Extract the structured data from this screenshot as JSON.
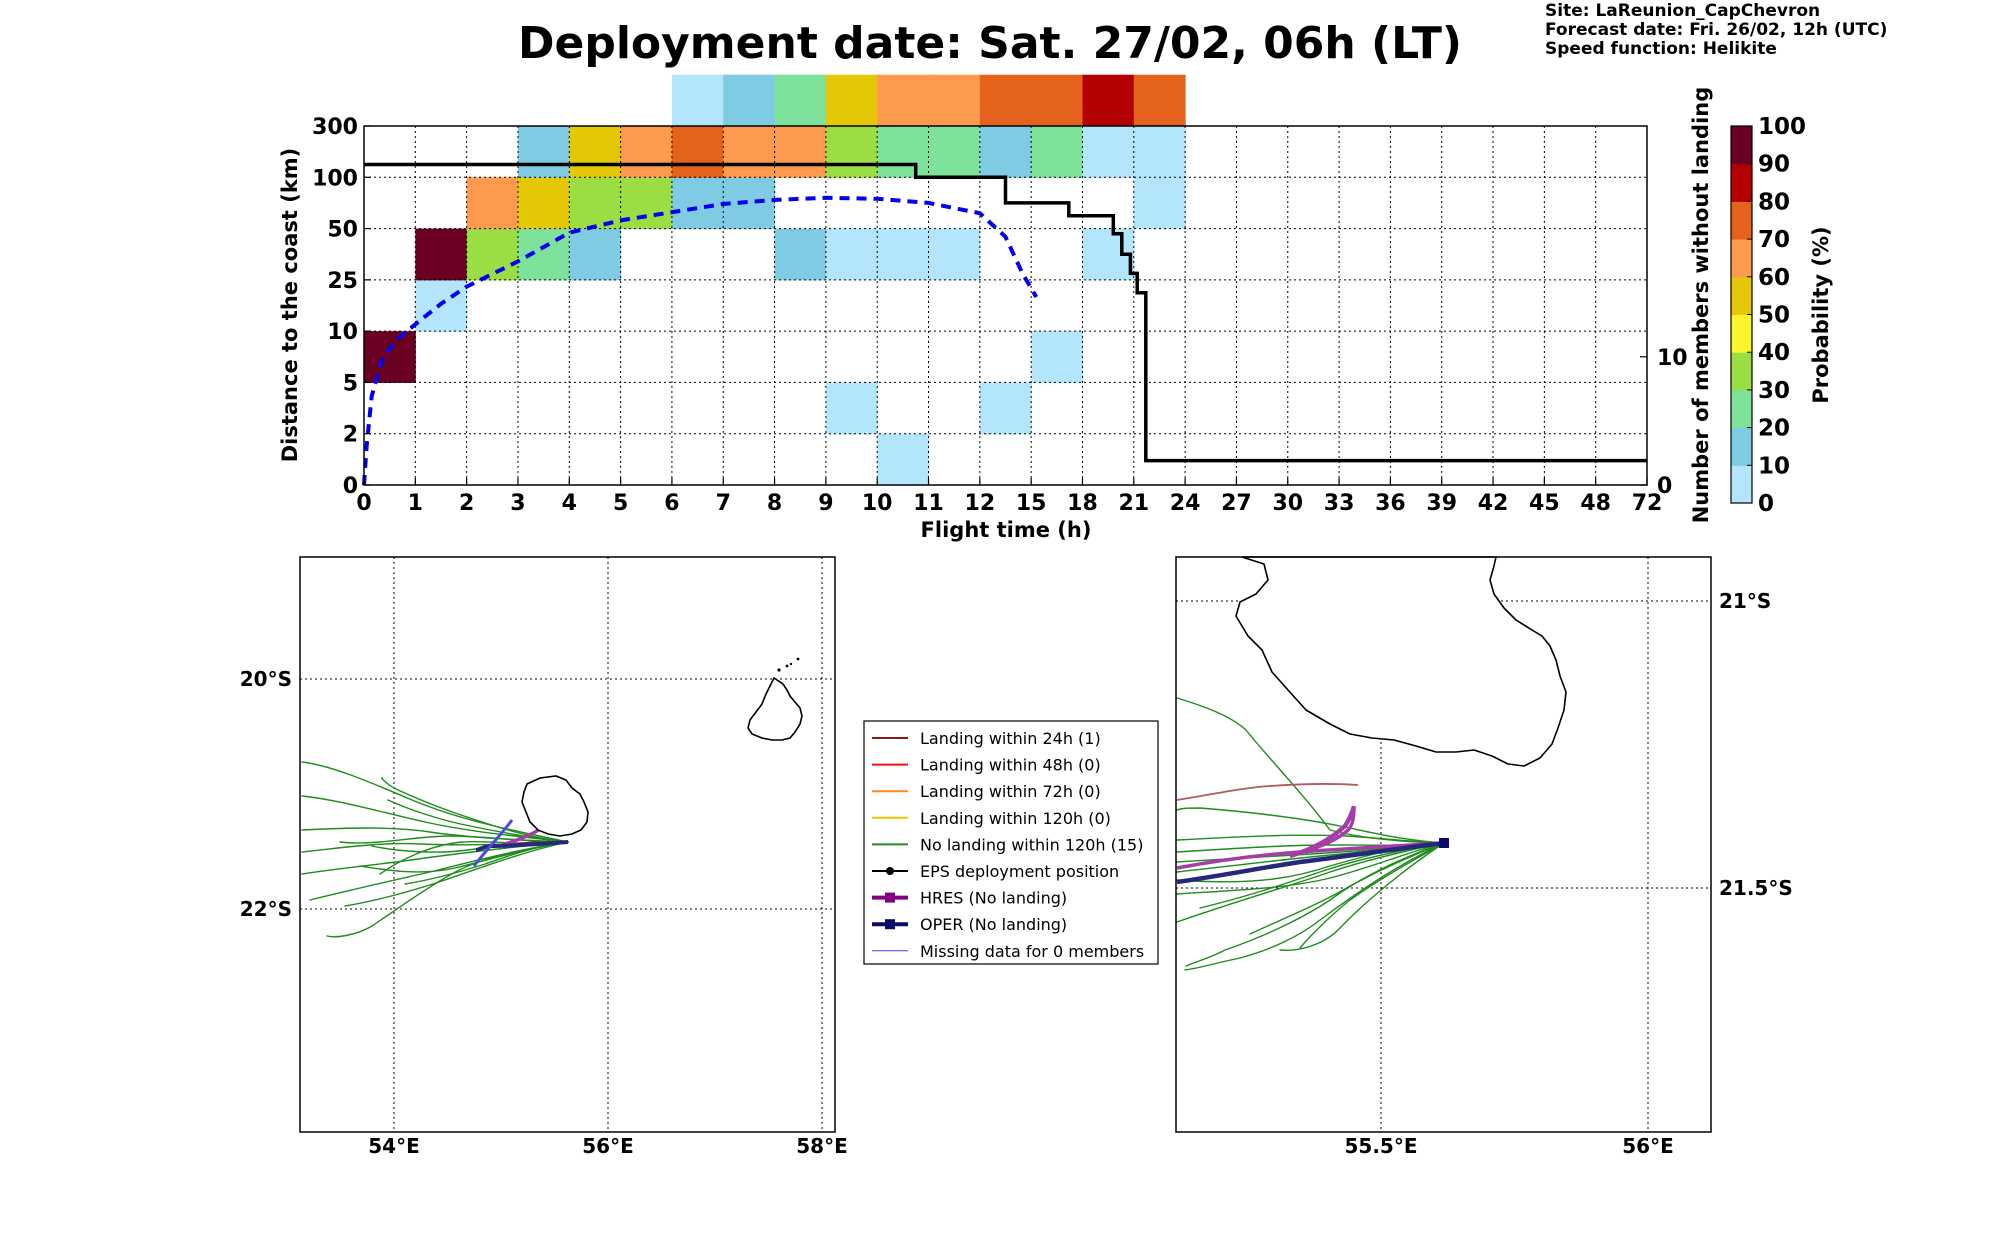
{
  "title": "Deployment date: Sat. 27/02, 06h (LT)",
  "info": {
    "site": "Site: LaReunion_CapChevron",
    "forecast": "Forecast date: Fri. 26/02, 12h (UTC)",
    "speed": "Speed function: Helikite"
  },
  "chart_data": [
    {
      "type": "heatmap",
      "xlabel": "Flight time (h)",
      "ylabel": "Distance to the coast (km)",
      "ylabel_right": "Number of members without landing",
      "x_bins": [
        "0",
        "1",
        "2",
        "3",
        "4",
        "5",
        "6",
        "7",
        "8",
        "9",
        "10",
        "11",
        "12",
        "15",
        "18",
        "21",
        "24",
        "27",
        "30",
        "33",
        "36",
        "39",
        "42",
        "45",
        "48",
        "72"
      ],
      "y_bins": [
        "0",
        "2",
        "5",
        "10",
        "25",
        "50",
        "100",
        "300"
      ],
      "grid": true,
      "cells": [
        {
          "x": 0,
          "y": 2,
          "p": 95
        },
        {
          "x": 1,
          "y": 3,
          "p": 5
        },
        {
          "x": 1,
          "y": 4,
          "p": 95
        },
        {
          "x": 2,
          "y": 4,
          "p": 35
        },
        {
          "x": 2,
          "y": 5,
          "p": 65
        },
        {
          "x": 3,
          "y": 4,
          "p": 25
        },
        {
          "x": 3,
          "y": 5,
          "p": 55
        },
        {
          "x": 3,
          "y": 6,
          "p": 15
        },
        {
          "x": 4,
          "y": 4,
          "p": 15
        },
        {
          "x": 4,
          "y": 5,
          "p": 35
        },
        {
          "x": 4,
          "y": 6,
          "p": 55
        },
        {
          "x": 5,
          "y": 5,
          "p": 35
        },
        {
          "x": 5,
          "y": 6,
          "p": 65
        },
        {
          "x": 6,
          "y": 5,
          "p": 15
        },
        {
          "x": 6,
          "y": 6,
          "p": 75
        },
        {
          "x": 6,
          "y": 7,
          "p": 5
        },
        {
          "x": 7,
          "y": 5,
          "p": 15
        },
        {
          "x": 7,
          "y": 6,
          "p": 65
        },
        {
          "x": 7,
          "y": 7,
          "p": 15
        },
        {
          "x": 8,
          "y": 4,
          "p": 15
        },
        {
          "x": 8,
          "y": 6,
          "p": 65
        },
        {
          "x": 8,
          "y": 7,
          "p": 25
        },
        {
          "x": 9,
          "y": 1,
          "p": 5
        },
        {
          "x": 9,
          "y": 4,
          "p": 5
        },
        {
          "x": 9,
          "y": 6,
          "p": 35
        },
        {
          "x": 9,
          "y": 7,
          "p": 55
        },
        {
          "x": 10,
          "y": 0,
          "p": 5
        },
        {
          "x": 10,
          "y": 4,
          "p": 5
        },
        {
          "x": 10,
          "y": 6,
          "p": 25
        },
        {
          "x": 10,
          "y": 7,
          "p": 65
        },
        {
          "x": 11,
          "y": 4,
          "p": 5
        },
        {
          "x": 11,
          "y": 6,
          "p": 25
        },
        {
          "x": 11,
          "y": 7,
          "p": 65
        },
        {
          "x": 12,
          "y": 1,
          "p": 5
        },
        {
          "x": 12,
          "y": 6,
          "p": 15
        },
        {
          "x": 12,
          "y": 7,
          "p": 75
        },
        {
          "x": 13,
          "y": 6,
          "p": 25
        },
        {
          "x": 13,
          "y": 7,
          "p": 75
        },
        {
          "x": 13,
          "y": 2,
          "p": 5
        },
        {
          "x": 14,
          "y": 4,
          "p": 5
        },
        {
          "x": 14,
          "y": 6,
          "p": 5
        },
        {
          "x": 14,
          "y": 7,
          "p": 85
        },
        {
          "x": 15,
          "y": 5,
          "p": 5
        },
        {
          "x": 15,
          "y": 6,
          "p": 5
        },
        {
          "x": 15,
          "y": 7,
          "p": 75
        }
      ],
      "members_without_landing": {
        "ylim": [
          0,
          28
        ],
        "ticks": [
          "0",
          "10"
        ],
        "steps": [
          {
            "t": 0,
            "n": 25
          },
          {
            "t": 10.75,
            "n": 25
          },
          {
            "t": 10.75,
            "n": 24
          },
          {
            "t": 13.5,
            "n": 24
          },
          {
            "t": 13.5,
            "n": 22
          },
          {
            "t": 17.2,
            "n": 22
          },
          {
            "t": 17.2,
            "n": 21
          },
          {
            "t": 19.8,
            "n": 21
          },
          {
            "t": 19.8,
            "n": 19.6
          },
          {
            "t": 20.3,
            "n": 19.6
          },
          {
            "t": 20.3,
            "n": 18.0
          },
          {
            "t": 20.8,
            "n": 18.0
          },
          {
            "t": 20.8,
            "n": 16.5
          },
          {
            "t": 21.2,
            "n": 16.5
          },
          {
            "t": 21.2,
            "n": 15.0
          },
          {
            "t": 21.7,
            "n": 15.0
          },
          {
            "t": 21.7,
            "n": 1.9
          },
          {
            "t": 72,
            "n": 1.9
          }
        ]
      },
      "mean_distance_curve": [
        [
          0,
          0
        ],
        [
          0.05,
          1.5
        ],
        [
          0.15,
          4.2
        ],
        [
          0.35,
          7.2
        ],
        [
          0.6,
          9.0
        ],
        [
          1.0,
          12
        ],
        [
          1.5,
          18
        ],
        [
          2,
          23
        ],
        [
          3,
          34
        ],
        [
          4,
          48
        ],
        [
          5,
          58
        ],
        [
          6,
          66
        ],
        [
          7,
          74
        ],
        [
          8,
          78
        ],
        [
          9,
          80
        ],
        [
          10,
          79
        ],
        [
          11,
          75
        ],
        [
          12,
          65
        ],
        [
          13.5,
          46
        ],
        [
          14.5,
          28
        ],
        [
          15.3,
          20
        ]
      ],
      "colorbar": {
        "label": "Probability (%)",
        "ticks": [
          "0",
          "10",
          "20",
          "30",
          "40",
          "50",
          "60",
          "70",
          "80",
          "90",
          "100"
        ],
        "colors": [
          "#b3e5fc",
          "#7fcbe4",
          "#7ee29b",
          "#9bde44",
          "#f9f42c",
          "#e4c808",
          "#fd9a4e",
          "#e5621c",
          "#b40000",
          "#6a0022"
        ]
      }
    },
    {
      "type": "map",
      "x_ticks": [
        "54°E",
        "56°E",
        "58°E"
      ],
      "y_ticks": [
        "20°S",
        "22°S"
      ]
    },
    {
      "type": "map",
      "x_ticks": [
        "55.5°E",
        "56°E"
      ],
      "y_ticks": [
        "21°S",
        "21.5°S"
      ]
    }
  ],
  "legend": [
    {
      "label": "Landing within 24h (1)",
      "color": "#8b1a1a",
      "marker": "none",
      "width": 2
    },
    {
      "label": "Landing within 48h (0)",
      "color": "#ee1111",
      "marker": "none",
      "width": 2
    },
    {
      "label": "Landing within 72h (0)",
      "color": "#ff8c1a",
      "marker": "none",
      "width": 2
    },
    {
      "label": "Landing within 120h (0)",
      "color": "#f2c500",
      "marker": "none",
      "width": 2
    },
    {
      "label": "No landing within 120h (15)",
      "color": "#1e8c1e",
      "marker": "none",
      "width": 2
    },
    {
      "label": "EPS deployment position",
      "color": "#000000",
      "marker": "dot",
      "width": 2
    },
    {
      "label": "HRES (No landing)",
      "color": "#800080",
      "marker": "square",
      "width": 4
    },
    {
      "label": "OPER (No landing)",
      "color": "#0b0b6e",
      "marker": "square",
      "width": 4
    },
    {
      "label": "Missing data for 0 members",
      "color": "#3c3cf0",
      "marker": "none",
      "width": 1
    }
  ],
  "colors": {
    "mean_curve": "#0000ee",
    "members_step": "#000000",
    "ensemble_green": "#1e8c1e",
    "hres": "#a63da6",
    "oper": "#27277e"
  }
}
